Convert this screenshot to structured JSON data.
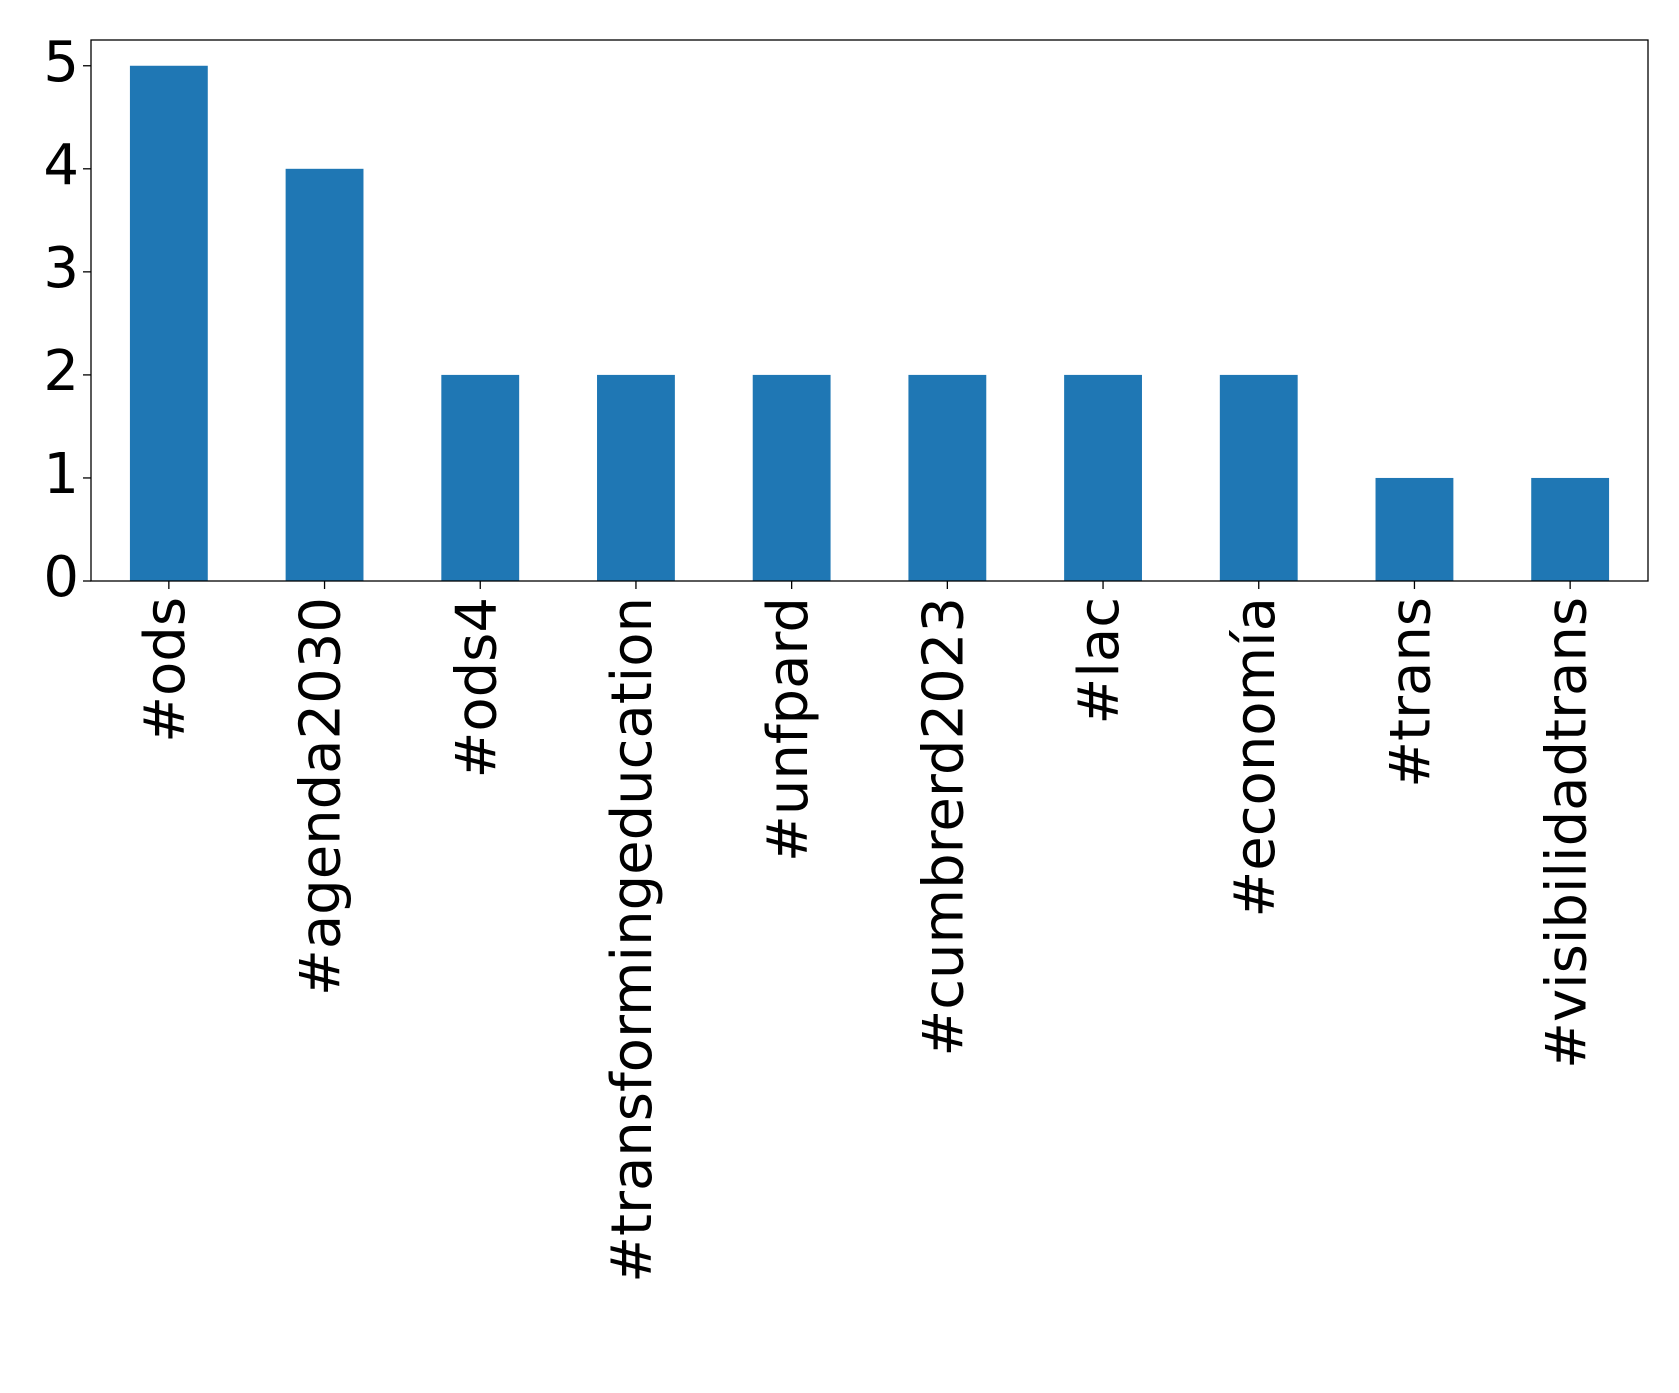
{
  "chart_data": {
    "type": "bar",
    "categories": [
      "#ods",
      "#agenda2030",
      "#ods4",
      "#transformingeducation",
      "#unfpard",
      "#cumbrerd2023",
      "#lac",
      "#economía",
      "#trans",
      "#visibilidadtrans"
    ],
    "values": [
      5,
      4,
      2,
      2,
      2,
      2,
      2,
      2,
      1,
      1
    ],
    "color": "#1f77b4",
    "ylim": [
      0,
      5.25
    ],
    "yticks": [
      0,
      1,
      2,
      3,
      4,
      5
    ],
    "grid": false
  }
}
